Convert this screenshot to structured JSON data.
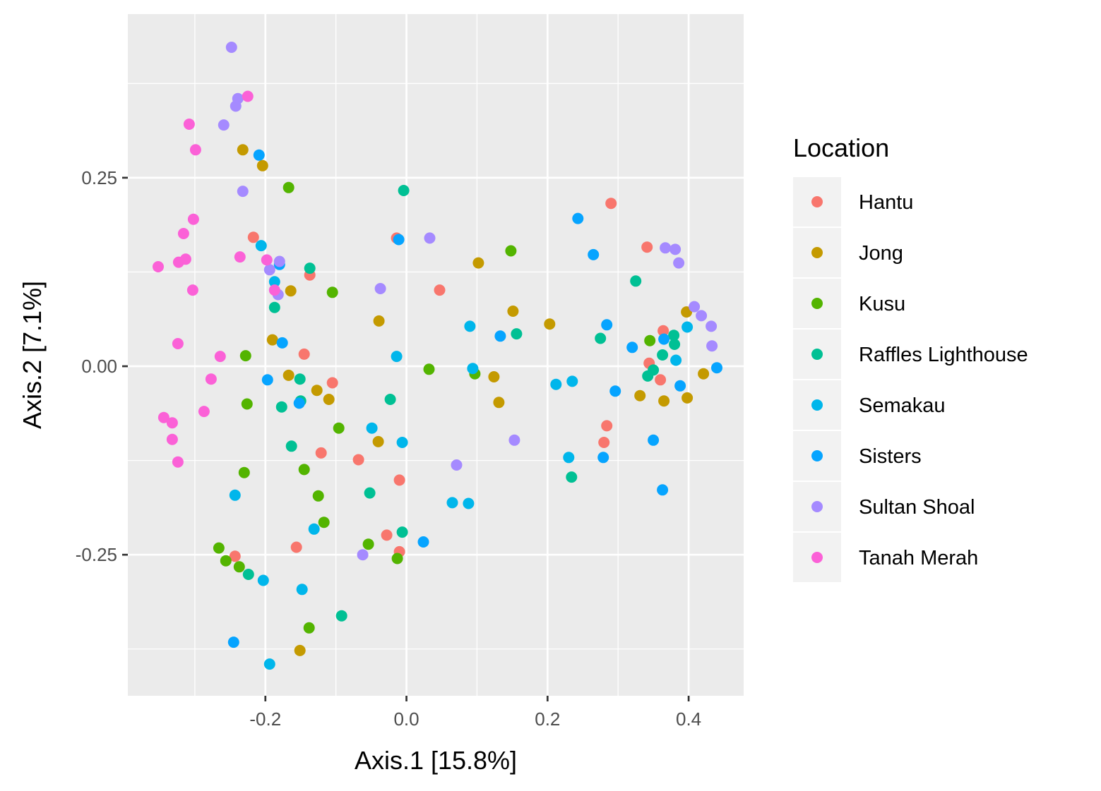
{
  "chart_data": {
    "type": "scatter",
    "xlabel": "Axis.1   [15.8%]",
    "ylabel": "Axis.2   [7.1%]",
    "xlim": [
      -0.395,
      0.478
    ],
    "ylim": [
      -0.437,
      0.467
    ],
    "x_ticks": [
      -0.2,
      0.0,
      0.2,
      0.4
    ],
    "x_tick_labels": [
      "-0.2",
      "0.0",
      "0.2",
      "0.4"
    ],
    "y_ticks": [
      -0.25,
      0.0,
      0.25
    ],
    "y_tick_labels": [
      "-0.25",
      "0.00",
      "0.25"
    ],
    "grid": true,
    "panel_background": "#ebebeb",
    "legend": {
      "title": "Location",
      "position": "right"
    },
    "series": [
      {
        "name": "Hantu",
        "color": "#F8766D",
        "points": [
          [
            -0.217,
            0.171
          ],
          [
            -0.014,
            0.17
          ],
          [
            -0.137,
            0.121
          ],
          [
            0.047,
            0.101
          ],
          [
            -0.145,
            0.016
          ],
          [
            -0.105,
            -0.022
          ],
          [
            -0.121,
            -0.115
          ],
          [
            -0.068,
            -0.124
          ],
          [
            -0.01,
            -0.151
          ],
          [
            -0.028,
            -0.224
          ],
          [
            -0.01,
            -0.246
          ],
          [
            -0.156,
            -0.24
          ],
          [
            -0.243,
            -0.252
          ],
          [
            0.29,
            0.216
          ],
          [
            0.341,
            0.158
          ],
          [
            0.364,
            0.047
          ],
          [
            0.344,
            0.004
          ],
          [
            0.36,
            -0.018
          ],
          [
            0.284,
            -0.079
          ],
          [
            0.28,
            -0.101
          ]
        ]
      },
      {
        "name": "Jong",
        "color": "#C49A00",
        "points": [
          [
            -0.232,
            0.287
          ],
          [
            -0.204,
            0.266
          ],
          [
            -0.164,
            0.1
          ],
          [
            -0.19,
            0.035
          ],
          [
            -0.167,
            -0.012
          ],
          [
            -0.127,
            -0.032
          ],
          [
            -0.11,
            -0.044
          ],
          [
            -0.039,
            0.06
          ],
          [
            -0.04,
            -0.1
          ],
          [
            -0.151,
            -0.377
          ],
          [
            0.102,
            0.137
          ],
          [
            0.151,
            0.073
          ],
          [
            0.203,
            0.056
          ],
          [
            0.124,
            -0.014
          ],
          [
            0.131,
            -0.048
          ],
          [
            0.397,
            0.072
          ],
          [
            0.421,
            -0.01
          ],
          [
            0.398,
            -0.042
          ],
          [
            0.331,
            -0.039
          ],
          [
            0.365,
            -0.046
          ]
        ]
      },
      {
        "name": "Kusu",
        "color": "#53B400",
        "points": [
          [
            -0.167,
            0.237
          ],
          [
            -0.105,
            0.098
          ],
          [
            -0.228,
            0.014
          ],
          [
            -0.226,
            -0.05
          ],
          [
            -0.096,
            -0.082
          ],
          [
            -0.23,
            -0.141
          ],
          [
            -0.145,
            -0.137
          ],
          [
            -0.125,
            -0.172
          ],
          [
            -0.117,
            -0.207
          ],
          [
            -0.266,
            -0.241
          ],
          [
            -0.256,
            -0.258
          ],
          [
            -0.237,
            -0.266
          ],
          [
            -0.138,
            -0.347
          ],
          [
            -0.054,
            -0.236
          ],
          [
            -0.013,
            -0.255
          ],
          [
            0.032,
            -0.004
          ],
          [
            0.097,
            -0.01
          ],
          [
            0.148,
            0.153
          ],
          [
            0.345,
            0.034
          ]
        ]
      },
      {
        "name": "Raffles Lighthouse",
        "color": "#00C094",
        "points": [
          [
            -0.137,
            0.13
          ],
          [
            -0.187,
            0.078
          ],
          [
            -0.151,
            -0.017
          ],
          [
            -0.177,
            -0.054
          ],
          [
            -0.163,
            -0.106
          ],
          [
            -0.15,
            -0.046
          ],
          [
            -0.023,
            -0.044
          ],
          [
            -0.052,
            -0.168
          ],
          [
            -0.006,
            -0.22
          ],
          [
            -0.224,
            -0.276
          ],
          [
            -0.092,
            -0.331
          ],
          [
            -0.004,
            0.233
          ],
          [
            0.156,
            0.043
          ],
          [
            0.234,
            -0.147
          ],
          [
            0.275,
            0.037
          ],
          [
            0.325,
            0.113
          ],
          [
            0.342,
            -0.013
          ],
          [
            0.35,
            -0.005
          ],
          [
            0.363,
            0.015
          ],
          [
            0.379,
            0.041
          ],
          [
            0.38,
            0.029
          ]
        ]
      },
      {
        "name": "Semakau",
        "color": "#00B6EB",
        "points": [
          [
            -0.206,
            0.16
          ],
          [
            -0.187,
            0.112
          ],
          [
            -0.243,
            -0.171
          ],
          [
            -0.131,
            -0.216
          ],
          [
            -0.148,
            -0.296
          ],
          [
            -0.203,
            -0.284
          ],
          [
            -0.194,
            -0.395
          ],
          [
            -0.014,
            0.013
          ],
          [
            -0.049,
            -0.082
          ],
          [
            -0.006,
            -0.101
          ],
          [
            0.065,
            -0.181
          ],
          [
            0.088,
            -0.182
          ],
          [
            0.09,
            0.053
          ],
          [
            0.094,
            -0.003
          ],
          [
            0.212,
            -0.024
          ],
          [
            0.235,
            -0.02
          ],
          [
            0.23,
            -0.121
          ],
          [
            0.398,
            0.052
          ],
          [
            0.382,
            0.008
          ]
        ]
      },
      {
        "name": "Sisters",
        "color": "#06A4FF",
        "points": [
          [
            -0.209,
            0.28
          ],
          [
            -0.18,
            0.135
          ],
          [
            -0.176,
            0.031
          ],
          [
            -0.197,
            -0.018
          ],
          [
            -0.152,
            -0.049
          ],
          [
            -0.245,
            -0.366
          ],
          [
            -0.011,
            0.168
          ],
          [
            0.024,
            -0.233
          ],
          [
            0.133,
            0.04
          ],
          [
            0.243,
            0.196
          ],
          [
            0.265,
            0.148
          ],
          [
            0.284,
            0.055
          ],
          [
            0.296,
            -0.033
          ],
          [
            0.279,
            -0.121
          ],
          [
            0.32,
            0.025
          ],
          [
            0.35,
            -0.098
          ],
          [
            0.363,
            -0.164
          ],
          [
            0.365,
            0.036
          ],
          [
            0.388,
            -0.026
          ],
          [
            0.44,
            -0.002
          ]
        ]
      },
      {
        "name": "Sultan Shoal",
        "color": "#A58AFF",
        "points": [
          [
            -0.248,
            0.423
          ],
          [
            -0.239,
            0.355
          ],
          [
            -0.242,
            0.345
          ],
          [
            -0.259,
            0.32
          ],
          [
            -0.232,
            0.232
          ],
          [
            -0.18,
            0.139
          ],
          [
            -0.194,
            0.128
          ],
          [
            -0.182,
            0.095
          ],
          [
            -0.037,
            0.103
          ],
          [
            0.033,
            0.17
          ],
          [
            0.071,
            -0.131
          ],
          [
            -0.062,
            -0.25
          ],
          [
            0.153,
            -0.098
          ],
          [
            0.367,
            0.157
          ],
          [
            0.381,
            0.155
          ],
          [
            0.386,
            0.137
          ],
          [
            0.408,
            0.079
          ],
          [
            0.418,
            0.067
          ],
          [
            0.432,
            0.053
          ],
          [
            0.433,
            0.027
          ]
        ]
      },
      {
        "name": "Tanah Merah",
        "color": "#FB61D7",
        "points": [
          [
            -0.225,
            0.358
          ],
          [
            -0.308,
            0.321
          ],
          [
            -0.299,
            0.287
          ],
          [
            -0.302,
            0.195
          ],
          [
            -0.316,
            0.176
          ],
          [
            -0.236,
            0.145
          ],
          [
            -0.198,
            0.141
          ],
          [
            -0.313,
            0.142
          ],
          [
            -0.323,
            0.138
          ],
          [
            -0.352,
            0.132
          ],
          [
            -0.303,
            0.101
          ],
          [
            -0.187,
            0.101
          ],
          [
            -0.324,
            0.03
          ],
          [
            -0.264,
            0.013
          ],
          [
            -0.277,
            -0.017
          ],
          [
            -0.287,
            -0.06
          ],
          [
            -0.344,
            -0.068
          ],
          [
            -0.332,
            -0.075
          ],
          [
            -0.332,
            -0.097
          ],
          [
            -0.324,
            -0.127
          ]
        ]
      }
    ]
  }
}
